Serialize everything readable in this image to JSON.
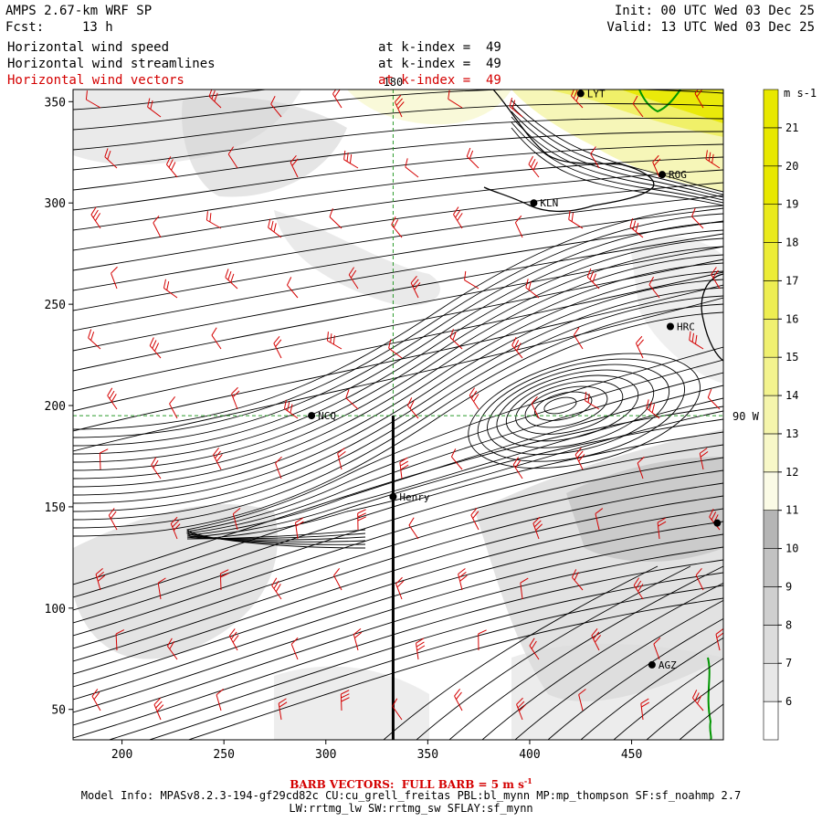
{
  "header": {
    "model": "AMPS 2.67-km WRF SP",
    "fcst_label": "Fcst:",
    "fcst_value": "13 h",
    "init": "Init: 00 UTC Wed 03 Dec 25",
    "valid": "Valid: 13 UTC Wed 03 Dec 25"
  },
  "fields": [
    {
      "name": "Horizontal wind speed",
      "level": "at k-index =  49"
    },
    {
      "name": "Horizontal wind streamlines",
      "level": "at k-index =  49"
    },
    {
      "name": "Horizontal wind vectors",
      "level": "at k-index =  49"
    }
  ],
  "footer": {
    "barb_note": "BARB VECTORS:  FULL BARB = 5 m s",
    "barb_exp": "-1",
    "model_info": "Model Info: MPASv8.2.3-194-gf29cd82c CU:cu_grell_freitas PBL:bl_mynn MP:mp_thompson SF:sf_noahmp 2.7",
    "model_info2": "LW:rrtmg_lw SW:rrtmg_sw SFLAY:sf_mynn"
  },
  "chart_data": {
    "type": "heatmap",
    "title": "Horizontal wind speed",
    "units": "m s-1",
    "x_ticks": [
      200,
      250,
      300,
      350,
      400,
      450
    ],
    "y_ticks": [
      50,
      100,
      150,
      200,
      250,
      300,
      350
    ],
    "xlim": [
      176,
      495
    ],
    "ylim": [
      35,
      356
    ],
    "colorbar": {
      "levels": [
        6,
        7,
        8,
        9,
        10,
        11,
        12,
        13,
        14,
        15,
        16,
        17,
        18,
        19,
        20,
        21
      ],
      "colors": [
        "#ffffff",
        "#e8e8e8",
        "#dcdcdc",
        "#cfcfcf",
        "#c2c2c2",
        "#b5b5b5",
        "#fbfbe6",
        "#f8f8c8",
        "#f5f5ac",
        "#f3f38e",
        "#f0f070",
        "#eeee52",
        "#ecec36",
        "#eaea1c",
        "#e8e800",
        "#e8e800"
      ]
    },
    "reference_lines": [
      {
        "label": "180",
        "axis": "x",
        "value": 333
      },
      {
        "label": "90 W",
        "axis": "y",
        "value": 195
      }
    ],
    "cross_section": {
      "x": 333,
      "y0": 35,
      "y1": 195
    },
    "stations": [
      {
        "name": "LYT",
        "x": 425,
        "y": 354
      },
      {
        "name": "ROG",
        "x": 465,
        "y": 314
      },
      {
        "name": "KLN",
        "x": 402,
        "y": 300
      },
      {
        "name": "HRC",
        "x": 469,
        "y": 239
      },
      {
        "name": "NCQ",
        "x": 293,
        "y": 195
      },
      {
        "name": "Henry",
        "x": 333,
        "y": 155
      },
      {
        "name": "AGZ",
        "x": 460,
        "y": 72
      },
      {
        "name": "",
        "x": 492,
        "y": 142
      }
    ],
    "vortex_center": {
      "x": 415,
      "y": 200
    }
  }
}
